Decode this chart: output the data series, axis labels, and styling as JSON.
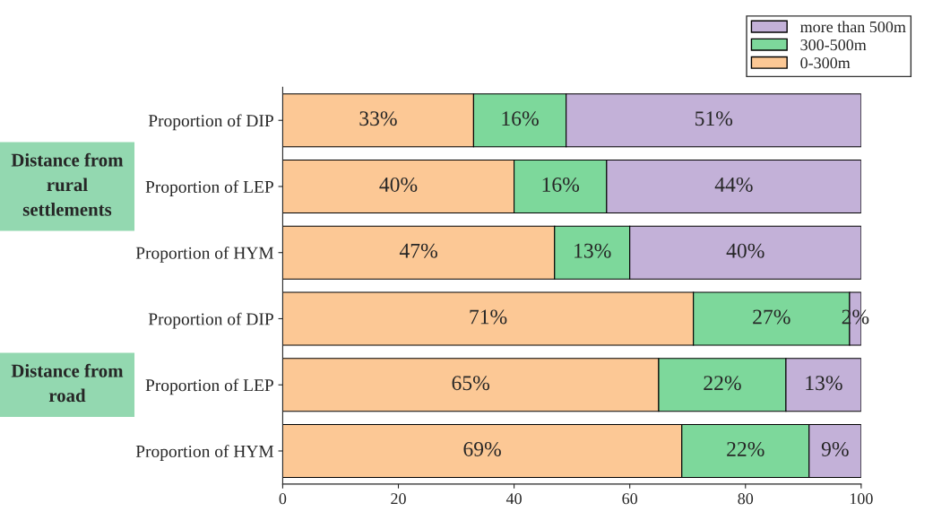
{
  "chart_data": {
    "type": "bar",
    "orientation": "horizontal",
    "stacked": true,
    "categories": [
      "Proportion of DIP",
      "Proportion of LEP",
      "Proportion of HYM",
      "Proportion of DIP",
      "Proportion of LEP",
      "Proportion of HYM"
    ],
    "series": [
      {
        "name": "0-300m",
        "color": "#fcc895",
        "values": [
          33,
          40,
          47,
          71,
          65,
          69
        ],
        "value_labels": [
          "33%",
          "40%",
          "47%",
          "71%",
          "65%",
          "69%"
        ]
      },
      {
        "name": "300-500m",
        "color": "#7dd89b",
        "values": [
          16,
          16,
          13,
          27,
          22,
          22
        ],
        "value_labels": [
          "16%",
          "16%",
          "13%",
          "27%",
          "22%",
          "22%"
        ]
      },
      {
        "name": "more than 500m",
        "color": "#c3b1d8",
        "values": [
          51,
          44,
          40,
          2,
          13,
          9
        ],
        "value_labels": [
          "51%",
          "44%",
          "40%",
          "2%",
          "13%",
          "9%"
        ]
      }
    ],
    "xlim": [
      0,
      100
    ],
    "xticks": [
      0,
      20,
      40,
      60,
      80,
      100
    ],
    "annotations": [
      "Distance from rural settlements",
      "Distance from road"
    ],
    "legend": "top right",
    "grid": false
  }
}
